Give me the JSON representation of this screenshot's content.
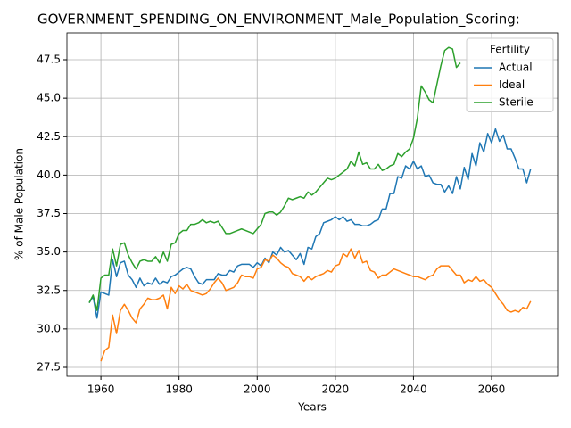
{
  "chart_data": {
    "type": "line",
    "title": "GOVERNMENT_SPENDING_ON_ENVIRONMENT_Male_Population_Scoring:",
    "x_label": "Years",
    "y_label": "% of Male Population",
    "x": [
      1957,
      1958,
      1959,
      1960,
      1961,
      1962,
      1963,
      1964,
      1965,
      1966,
      1967,
      1968,
      1969,
      1970,
      1971,
      1972,
      1973,
      1974,
      1975,
      1976,
      1977,
      1978,
      1979,
      1980,
      1981,
      1982,
      1983,
      1984,
      1985,
      1986,
      1987,
      1988,
      1989,
      1990,
      1991,
      1992,
      1993,
      1994,
      1995,
      1996,
      1997,
      1998,
      1999,
      2000,
      2001,
      2002,
      2003,
      2004,
      2005,
      2006,
      2007,
      2008,
      2009,
      2010,
      2011,
      2012,
      2013,
      2014,
      2015,
      2016,
      2017,
      2018,
      2019,
      2020,
      2021,
      2022,
      2023,
      2024,
      2025,
      2026,
      2027,
      2028,
      2029,
      2030,
      2031,
      2032,
      2033,
      2034,
      2035,
      2036,
      2037,
      2038,
      2039,
      2040,
      2041,
      2042,
      2043,
      2044,
      2045,
      2046,
      2047,
      2048,
      2049,
      2050,
      2051,
      2052,
      2053,
      2054,
      2055,
      2056,
      2057,
      2058,
      2059,
      2060,
      2061,
      2062,
      2063,
      2064,
      2065,
      2066,
      2067,
      2068,
      2069,
      2070
    ],
    "series": [
      {
        "name": "Actual",
        "color": "#1f77b4",
        "values": [
          31.7,
          32.1,
          30.7,
          32.4,
          32.3,
          32.2,
          34.5,
          33.4,
          34.3,
          34.4,
          33.5,
          33.2,
          32.7,
          33.3,
          32.8,
          33.0,
          32.9,
          33.3,
          32.9,
          33.1,
          33.0,
          33.4,
          33.5,
          33.7,
          33.9,
          34.0,
          33.9,
          33.4,
          33.0,
          32.9,
          33.2,
          33.2,
          33.2,
          33.6,
          33.5,
          33.5,
          33.8,
          33.7,
          34.1,
          34.2,
          34.2,
          34.2,
          34.0,
          34.3,
          34.1,
          34.6,
          34.3,
          35.0,
          34.8,
          35.3,
          35.0,
          35.1,
          34.8,
          34.5,
          34.9,
          34.2,
          35.3,
          35.2,
          36.0,
          36.2,
          36.9,
          37.0,
          37.1,
          37.3,
          37.1,
          37.3,
          37.0,
          37.1,
          36.8,
          36.8,
          36.7,
          36.7,
          36.8,
          37.0,
          37.1,
          37.8,
          37.8,
          38.8,
          38.8,
          39.9,
          39.8,
          40.6,
          40.4,
          40.9,
          40.4,
          40.6,
          39.9,
          40.0,
          39.5,
          39.4,
          39.4,
          38.9,
          39.3,
          38.8,
          39.9,
          39.1,
          40.5,
          39.7,
          41.4,
          40.6,
          42.1,
          41.5,
          42.7,
          42.1,
          43.0,
          42.2,
          42.6,
          41.7,
          41.7,
          41.1,
          40.4,
          40.4,
          39.5,
          40.4
        ]
      },
      {
        "name": "Ideal",
        "color": "#ff7f0e",
        "values": [
          null,
          null,
          null,
          27.9,
          28.6,
          28.8,
          30.9,
          29.7,
          31.2,
          31.6,
          31.2,
          30.7,
          30.4,
          31.3,
          31.6,
          32.0,
          31.9,
          31.9,
          32.0,
          32.2,
          31.3,
          32.7,
          32.3,
          32.8,
          32.6,
          32.9,
          32.5,
          32.4,
          32.3,
          32.2,
          32.3,
          32.6,
          33.0,
          33.3,
          33.0,
          32.5,
          32.6,
          32.7,
          33.0,
          33.5,
          33.4,
          33.4,
          33.3,
          33.9,
          34.0,
          34.5,
          34.4,
          34.8,
          34.6,
          34.3,
          34.1,
          34.0,
          33.6,
          33.5,
          33.4,
          33.1,
          33.4,
          33.2,
          33.4,
          33.5,
          33.6,
          33.8,
          33.7,
          34.1,
          34.2,
          34.9,
          34.7,
          35.2,
          34.6,
          35.1,
          34.3,
          34.4,
          33.8,
          33.7,
          33.3,
          33.5,
          33.5,
          33.7,
          33.9,
          33.8,
          33.7,
          33.6,
          33.5,
          33.4,
          33.4,
          33.3,
          33.2,
          33.4,
          33.5,
          33.9,
          34.1,
          34.1,
          34.1,
          33.8,
          33.5,
          33.5,
          33.0,
          33.2,
          33.1,
          33.4,
          33.1,
          33.2,
          32.9,
          32.7,
          32.3,
          31.9,
          31.6,
          31.2,
          31.1,
          31.2,
          31.1,
          31.4,
          31.3,
          31.8
        ]
      },
      {
        "name": "Sterile",
        "color": "#2ca02c",
        "values": [
          31.7,
          32.2,
          31.2,
          33.3,
          33.5,
          33.5,
          35.2,
          34.1,
          35.5,
          35.6,
          34.8,
          34.3,
          33.9,
          34.4,
          34.5,
          34.4,
          34.4,
          34.7,
          34.3,
          35.0,
          34.4,
          35.5,
          35.6,
          36.2,
          36.4,
          36.4,
          36.8,
          36.8,
          36.9,
          37.1,
          36.9,
          37.0,
          36.9,
          37.0,
          36.6,
          36.2,
          36.2,
          36.3,
          36.4,
          36.5,
          36.4,
          36.3,
          36.2,
          36.5,
          36.8,
          37.5,
          37.6,
          37.6,
          37.4,
          37.6,
          38.0,
          38.5,
          38.4,
          38.5,
          38.6,
          38.5,
          38.9,
          38.7,
          38.9,
          39.2,
          39.5,
          39.8,
          39.7,
          39.8,
          40.0,
          40.2,
          40.4,
          40.9,
          40.6,
          41.5,
          40.7,
          40.8,
          40.4,
          40.4,
          40.7,
          40.3,
          40.4,
          40.6,
          40.7,
          41.4,
          41.2,
          41.5,
          41.7,
          42.4,
          43.7,
          45.8,
          45.4,
          44.9,
          44.7,
          45.9,
          47.1,
          48.1,
          48.3,
          48.2,
          47.0,
          47.3,
          null,
          null,
          null,
          null,
          null,
          null,
          null,
          null,
          null,
          null,
          null,
          null,
          null,
          null,
          null,
          null,
          null,
          null
        ]
      }
    ],
    "xlim": [
      1951.3,
      2076.9
    ],
    "xticks": [
      1960,
      1980,
      2000,
      2020,
      2040,
      2060
    ],
    "ylim": [
      26.92,
      49.24
    ],
    "yticks": [
      27.5,
      {
        "value": 30,
        "label": "30.0"
      },
      32.5,
      {
        "value": 35,
        "label": "35.0"
      },
      37.5,
      {
        "value": 40,
        "label": "40.0"
      },
      42.5,
      {
        "value": 45,
        "label": "45.0"
      },
      47.5
    ],
    "grid": true,
    "legend": {
      "title": "Fertility",
      "loc": "upper right"
    }
  }
}
